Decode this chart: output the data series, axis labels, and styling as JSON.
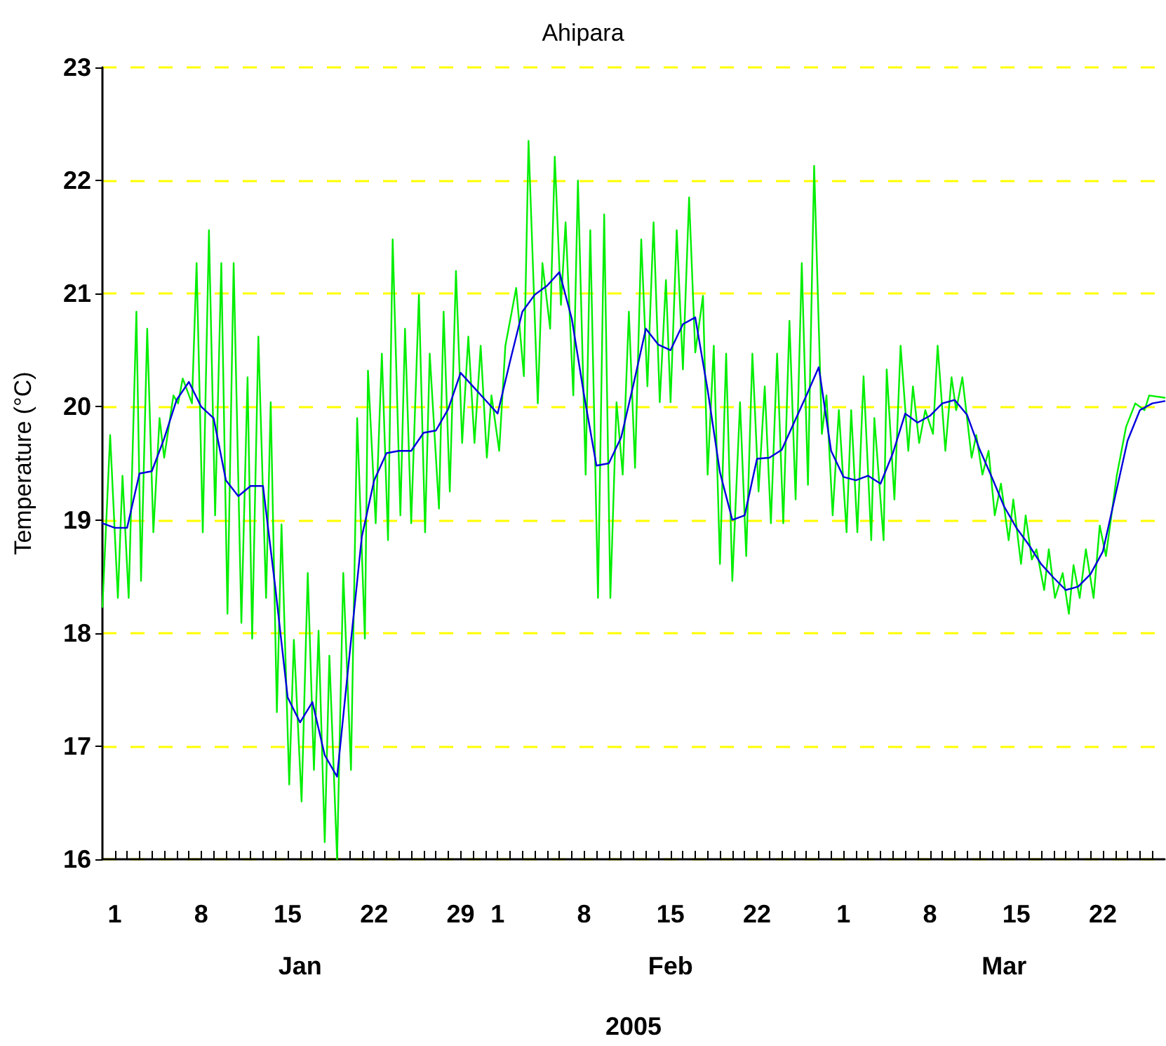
{
  "chart_data": {
    "type": "line",
    "title": "Ahipara",
    "xlabel": "2005",
    "ylabel": "Temperature (°C)",
    "xlim": [
      "2004-12-31",
      "2005-03-27"
    ],
    "ylim": [
      16,
      23
    ],
    "yticks": [
      16,
      17,
      18,
      19,
      20,
      21,
      22,
      23
    ],
    "xticks": [
      {
        "value": "2005-01-01",
        "label": "1"
      },
      {
        "value": "2005-01-02",
        "label": null
      },
      {
        "value": "2005-01-03",
        "label": null
      },
      {
        "value": "2005-01-04",
        "label": null
      },
      {
        "value": "2005-01-05",
        "label": null
      },
      {
        "value": "2005-01-06",
        "label": null
      },
      {
        "value": "2005-01-07",
        "label": null
      },
      {
        "value": "2005-01-08",
        "label": "8"
      },
      {
        "value": "2005-01-09",
        "label": null
      },
      {
        "value": "2005-01-10",
        "label": null
      },
      {
        "value": "2005-01-11",
        "label": null
      },
      {
        "value": "2005-01-12",
        "label": null
      },
      {
        "value": "2005-01-13",
        "label": null
      },
      {
        "value": "2005-01-14",
        "label": null
      },
      {
        "value": "2005-01-15",
        "label": "15"
      },
      {
        "value": "2005-01-16",
        "label": null
      },
      {
        "value": "2005-01-17",
        "label": null
      },
      {
        "value": "2005-01-18",
        "label": null
      },
      {
        "value": "2005-01-19",
        "label": null
      },
      {
        "value": "2005-01-20",
        "label": null
      },
      {
        "value": "2005-01-21",
        "label": null
      },
      {
        "value": "2005-01-22",
        "label": "22"
      },
      {
        "value": "2005-01-23",
        "label": null
      },
      {
        "value": "2005-01-24",
        "label": null
      },
      {
        "value": "2005-01-25",
        "label": null
      },
      {
        "value": "2005-01-26",
        "label": null
      },
      {
        "value": "2005-01-27",
        "label": null
      },
      {
        "value": "2005-01-28",
        "label": null
      },
      {
        "value": "2005-01-29",
        "label": "29"
      },
      {
        "value": "2005-01-30",
        "label": null
      },
      {
        "value": "2005-01-31",
        "label": null
      },
      {
        "value": "2005-02-01",
        "label": "1"
      },
      {
        "value": "2005-02-02",
        "label": null
      },
      {
        "value": "2005-02-03",
        "label": null
      },
      {
        "value": "2005-02-04",
        "label": null
      },
      {
        "value": "2005-02-05",
        "label": null
      },
      {
        "value": "2005-02-06",
        "label": null
      },
      {
        "value": "2005-02-07",
        "label": null
      },
      {
        "value": "2005-02-08",
        "label": "8"
      },
      {
        "value": "2005-02-09",
        "label": null
      },
      {
        "value": "2005-02-10",
        "label": null
      },
      {
        "value": "2005-02-11",
        "label": null
      },
      {
        "value": "2005-02-12",
        "label": null
      },
      {
        "value": "2005-02-13",
        "label": null
      },
      {
        "value": "2005-02-14",
        "label": null
      },
      {
        "value": "2005-02-15",
        "label": "15"
      },
      {
        "value": "2005-02-16",
        "label": null
      },
      {
        "value": "2005-02-17",
        "label": null
      },
      {
        "value": "2005-02-18",
        "label": null
      },
      {
        "value": "2005-02-19",
        "label": null
      },
      {
        "value": "2005-02-20",
        "label": null
      },
      {
        "value": "2005-02-21",
        "label": null
      },
      {
        "value": "2005-02-22",
        "label": "22"
      },
      {
        "value": "2005-02-23",
        "label": null
      },
      {
        "value": "2005-02-24",
        "label": null
      },
      {
        "value": "2005-02-25",
        "label": null
      },
      {
        "value": "2005-02-26",
        "label": null
      },
      {
        "value": "2005-02-27",
        "label": null
      },
      {
        "value": "2005-02-28",
        "label": null
      },
      {
        "value": "2005-03-01",
        "label": "1"
      },
      {
        "value": "2005-03-02",
        "label": null
      },
      {
        "value": "2005-03-03",
        "label": null
      },
      {
        "value": "2005-03-04",
        "label": null
      },
      {
        "value": "2005-03-05",
        "label": null
      },
      {
        "value": "2005-03-06",
        "label": null
      },
      {
        "value": "2005-03-07",
        "label": null
      },
      {
        "value": "2005-03-08",
        "label": "8"
      },
      {
        "value": "2005-03-09",
        "label": null
      },
      {
        "value": "2005-03-10",
        "label": null
      },
      {
        "value": "2005-03-11",
        "label": null
      },
      {
        "value": "2005-03-12",
        "label": null
      },
      {
        "value": "2005-03-13",
        "label": null
      },
      {
        "value": "2005-03-14",
        "label": null
      },
      {
        "value": "2005-03-15",
        "label": "15"
      },
      {
        "value": "2005-03-16",
        "label": null
      },
      {
        "value": "2005-03-17",
        "label": null
      },
      {
        "value": "2005-03-18",
        "label": null
      },
      {
        "value": "2005-03-19",
        "label": null
      },
      {
        "value": "2005-03-20",
        "label": null
      },
      {
        "value": "2005-03-21",
        "label": null
      },
      {
        "value": "2005-03-22",
        "label": "22"
      },
      {
        "value": "2005-03-23",
        "label": null
      },
      {
        "value": "2005-03-24",
        "label": null
      },
      {
        "value": "2005-03-25",
        "label": null
      },
      {
        "value": "2005-03-26",
        "label": null
      }
    ],
    "grid": "y",
    "marker": "none",
    "line_style": "solid",
    "annotations": [
      "Jan",
      "Feb",
      "Mar"
    ],
    "series": [
      {
        "color": "#00ee00",
        "x": [
          "2004-12-31T00:00",
          "2004-12-31T15:00",
          "2005-01-01T06:00",
          "2005-01-01T15:00",
          "2005-01-02T03:00",
          "2005-01-02T18:00",
          "2005-01-03T03:00",
          "2005-01-03T15:00",
          "2005-01-04T03:00",
          "2005-01-04T15:00",
          "2005-01-05T00:00",
          "2005-01-05T18:00",
          "2005-01-06T03:00",
          "2005-01-06T12:00",
          "2005-01-07T06:00",
          "2005-01-07T15:00",
          "2005-01-08T03:00",
          "2005-01-08T15:00",
          "2005-01-09T03:00",
          "2005-01-09T15:00",
          "2005-01-10T03:00",
          "2005-01-10T15:00",
          "2005-01-11T06:00",
          "2005-01-11T18:00",
          "2005-01-12T03:00",
          "2005-01-12T15:00",
          "2005-01-13T06:00",
          "2005-01-13T15:00",
          "2005-01-14T03:00",
          "2005-01-14T12:00",
          "2005-01-15T03:00",
          "2005-01-15T12:00",
          "2005-01-16T03:00",
          "2005-01-16T15:00",
          "2005-01-17T03:00",
          "2005-01-17T12:00",
          "2005-01-18T00:00",
          "2005-01-18T09:00",
          "2005-01-19T00:00",
          "2005-01-19T12:00",
          "2005-01-20T03:00",
          "2005-01-20T15:00",
          "2005-01-21T06:00",
          "2005-01-21T12:00",
          "2005-01-22T03:00",
          "2005-01-22T15:00",
          "2005-01-23T03:00",
          "2005-01-23T12:00",
          "2005-01-24T03:00",
          "2005-01-24T12:00",
          "2005-01-25T00:00",
          "2005-01-25T15:00",
          "2005-01-26T03:00",
          "2005-01-26T12:00",
          "2005-01-27T06:00",
          "2005-01-27T15:00",
          "2005-01-28T03:00",
          "2005-01-28T15:00",
          "2005-01-29T03:00",
          "2005-01-29T15:00",
          "2005-01-30T03:00",
          "2005-01-30T15:00",
          "2005-01-31T03:00",
          "2005-01-31T12:00",
          "2005-02-01T03:00",
          "2005-02-01T15:00",
          "2005-02-02T12:00",
          "2005-02-03T03:00",
          "2005-02-03T12:00",
          "2005-02-04T06:00",
          "2005-02-04T15:00",
          "2005-02-05T06:00",
          "2005-02-05T15:00",
          "2005-02-06T03:00",
          "2005-02-06T12:00",
          "2005-02-07T03:00",
          "2005-02-07T12:00",
          "2005-02-08T03:00",
          "2005-02-08T12:00",
          "2005-02-09T03:00",
          "2005-02-09T15:00",
          "2005-02-10T03:00",
          "2005-02-10T15:00",
          "2005-02-11T03:00",
          "2005-02-11T15:00",
          "2005-02-12T03:00",
          "2005-02-12T15:00",
          "2005-02-13T03:00",
          "2005-02-13T15:00",
          "2005-02-14T03:00",
          "2005-02-14T15:00",
          "2005-02-15T00:00",
          "2005-02-15T12:00",
          "2005-02-16T00:00",
          "2005-02-16T12:00",
          "2005-02-17T00:00",
          "2005-02-17T15:00",
          "2005-02-18T00:00",
          "2005-02-18T12:00",
          "2005-02-19T00:00",
          "2005-02-19T12:00",
          "2005-02-20T00:00",
          "2005-02-20T15:00",
          "2005-02-21T03:00",
          "2005-02-21T15:00",
          "2005-02-22T03:00",
          "2005-02-22T15:00",
          "2005-02-23T03:00",
          "2005-02-23T15:00",
          "2005-02-24T03:00",
          "2005-02-24T15:00",
          "2005-02-25T03:00",
          "2005-02-25T15:00",
          "2005-02-26T03:00",
          "2005-02-26T15:00",
          "2005-02-27T06:00",
          "2005-02-27T15:00",
          "2005-02-28T03:00",
          "2005-02-28T15:00",
          "2005-03-01T06:00",
          "2005-03-01T15:00",
          "2005-03-02T03:00",
          "2005-03-02T15:00",
          "2005-03-03T06:00",
          "2005-03-03T12:00",
          "2005-03-04T06:00",
          "2005-03-04T12:00",
          "2005-03-05T03:00",
          "2005-03-05T15:00",
          "2005-03-06T06:00",
          "2005-03-06T15:00",
          "2005-03-07T03:00",
          "2005-03-07T15:00",
          "2005-03-08T06:00",
          "2005-03-08T15:00",
          "2005-03-09T06:00",
          "2005-03-09T18:00",
          "2005-03-10T03:00",
          "2005-03-10T15:00",
          "2005-03-11T09:00",
          "2005-03-11T18:00",
          "2005-03-12T06:00",
          "2005-03-12T18:00",
          "2005-03-13T06:00",
          "2005-03-13T18:00",
          "2005-03-14T09:00",
          "2005-03-14T18:00",
          "2005-03-15T09:00",
          "2005-03-15T18:00",
          "2005-03-16T06:00",
          "2005-03-16T15:00",
          "2005-03-17T06:00",
          "2005-03-17T15:00",
          "2005-03-18T03:00",
          "2005-03-18T18:00",
          "2005-03-19T06:00",
          "2005-03-19T15:00",
          "2005-03-20T03:00",
          "2005-03-20T15:00",
          "2005-03-21T06:00",
          "2005-03-21T18:00",
          "2005-03-22T06:00",
          "2005-03-23T03:00",
          "2005-03-23T21:00",
          "2005-03-24T15:00",
          "2005-03-25T09:00",
          "2005-03-25T18:00",
          "2005-03-27T00:00"
        ],
        "values": [
          18.23,
          19.75,
          18.31,
          19.39,
          18.31,
          20.84,
          18.46,
          20.69,
          18.89,
          19.9,
          19.55,
          20.1,
          20.03,
          20.25,
          20.03,
          21.27,
          18.89,
          21.56,
          19.04,
          21.27,
          18.17,
          21.27,
          18.09,
          20.26,
          17.95,
          20.62,
          18.31,
          20.04,
          17.3,
          18.96,
          16.66,
          17.94,
          16.51,
          18.53,
          16.79,
          18.02,
          16.15,
          17.8,
          16.0,
          18.53,
          16.79,
          19.9,
          17.95,
          20.32,
          18.97,
          20.47,
          18.82,
          21.48,
          19.04,
          20.69,
          18.97,
          20.99,
          18.89,
          20.47,
          19.1,
          20.84,
          19.25,
          21.2,
          19.68,
          20.62,
          19.68,
          20.54,
          19.55,
          20.1,
          19.61,
          20.54,
          21.05,
          20.27,
          22.35,
          20.03,
          21.27,
          20.69,
          22.21,
          20.9,
          21.63,
          20.1,
          22.0,
          19.4,
          21.56,
          18.31,
          21.7,
          18.31,
          20.04,
          19.4,
          20.84,
          19.46,
          21.48,
          20.18,
          21.63,
          20.04,
          21.12,
          20.04,
          21.56,
          20.33,
          21.85,
          20.48,
          20.98,
          19.4,
          20.54,
          18.61,
          20.47,
          18.46,
          20.04,
          18.68,
          20.47,
          19.25,
          20.18,
          18.97,
          20.47,
          18.97,
          20.76,
          19.18,
          21.27,
          19.31,
          22.13,
          19.76,
          20.1,
          19.04,
          19.97,
          18.89,
          19.97,
          18.89,
          20.27,
          18.82,
          19.9,
          18.82,
          20.33,
          19.18,
          20.54,
          19.61,
          20.18,
          19.68,
          19.97,
          19.76,
          20.54,
          19.61,
          20.26,
          19.97,
          20.26,
          19.55,
          19.75,
          19.4,
          19.61,
          19.04,
          19.32,
          18.82,
          19.18,
          18.61,
          19.04,
          18.65,
          18.74,
          18.38,
          18.74,
          18.31,
          18.53,
          18.17,
          18.6,
          18.31,
          18.74,
          18.31,
          18.95,
          18.68,
          19.39,
          19.82,
          20.03,
          19.97,
          20.1,
          20.08
        ]
      },
      {
        "color": "#0000dd",
        "x": [
          "2004-12-31",
          "2005-01-01",
          "2005-01-02",
          "2005-01-03",
          "2005-01-04",
          "2005-01-05",
          "2005-01-06",
          "2005-01-07",
          "2005-01-08",
          "2005-01-09",
          "2005-01-10",
          "2005-01-11",
          "2005-01-12",
          "2005-01-13",
          "2005-01-14",
          "2005-01-15",
          "2005-01-16",
          "2005-01-17",
          "2005-01-18",
          "2005-01-19",
          "2005-01-20",
          "2005-01-21",
          "2005-01-22",
          "2005-01-23",
          "2005-01-24",
          "2005-01-25",
          "2005-01-26",
          "2005-01-27",
          "2005-01-28",
          "2005-01-29",
          "2005-01-30",
          "2005-01-31",
          "2005-02-01",
          "2005-02-02",
          "2005-02-03",
          "2005-02-04",
          "2005-02-05",
          "2005-02-06",
          "2005-02-07",
          "2005-02-08",
          "2005-02-09",
          "2005-02-10",
          "2005-02-11",
          "2005-02-12",
          "2005-02-13",
          "2005-02-14",
          "2005-02-15",
          "2005-02-16",
          "2005-02-17",
          "2005-02-18",
          "2005-02-19",
          "2005-02-20",
          "2005-02-21",
          "2005-02-22",
          "2005-02-23",
          "2005-02-24",
          "2005-02-25",
          "2005-02-26",
          "2005-02-27",
          "2005-02-28",
          "2005-03-01",
          "2005-03-02",
          "2005-03-03",
          "2005-03-04",
          "2005-03-05",
          "2005-03-06",
          "2005-03-07",
          "2005-03-08",
          "2005-03-09",
          "2005-03-10",
          "2005-03-11",
          "2005-03-12",
          "2005-03-13",
          "2005-03-14",
          "2005-03-15",
          "2005-03-16",
          "2005-03-17",
          "2005-03-18",
          "2005-03-19",
          "2005-03-20",
          "2005-03-21",
          "2005-03-22",
          "2005-03-23",
          "2005-03-24",
          "2005-03-25",
          "2005-03-26",
          "2005-03-27"
        ],
        "values": [
          18.97,
          18.93,
          18.93,
          19.41,
          19.43,
          19.72,
          20.06,
          20.22,
          20.0,
          19.9,
          19.35,
          19.21,
          19.3,
          19.3,
          18.4,
          17.43,
          17.21,
          17.39,
          16.92,
          16.73,
          17.8,
          18.85,
          19.35,
          19.59,
          19.61,
          19.61,
          19.77,
          19.79,
          19.98,
          20.3,
          20.18,
          20.06,
          19.94,
          20.4,
          20.84,
          20.99,
          21.07,
          21.19,
          20.78,
          20.1,
          19.48,
          19.5,
          19.73,
          20.2,
          20.69,
          20.55,
          20.5,
          20.73,
          20.79,
          20.15,
          19.42,
          19.0,
          19.04,
          19.54,
          19.55,
          19.62,
          19.86,
          20.1,
          20.35,
          19.61,
          19.38,
          19.35,
          19.39,
          19.32,
          19.59,
          19.94,
          19.86,
          19.92,
          20.03,
          20.06,
          19.93,
          19.63,
          19.38,
          19.12,
          18.93,
          18.78,
          18.61,
          18.49,
          18.38,
          18.41,
          18.52,
          18.72,
          19.21,
          19.7,
          19.97,
          20.03,
          20.05
        ]
      }
    ]
  }
}
